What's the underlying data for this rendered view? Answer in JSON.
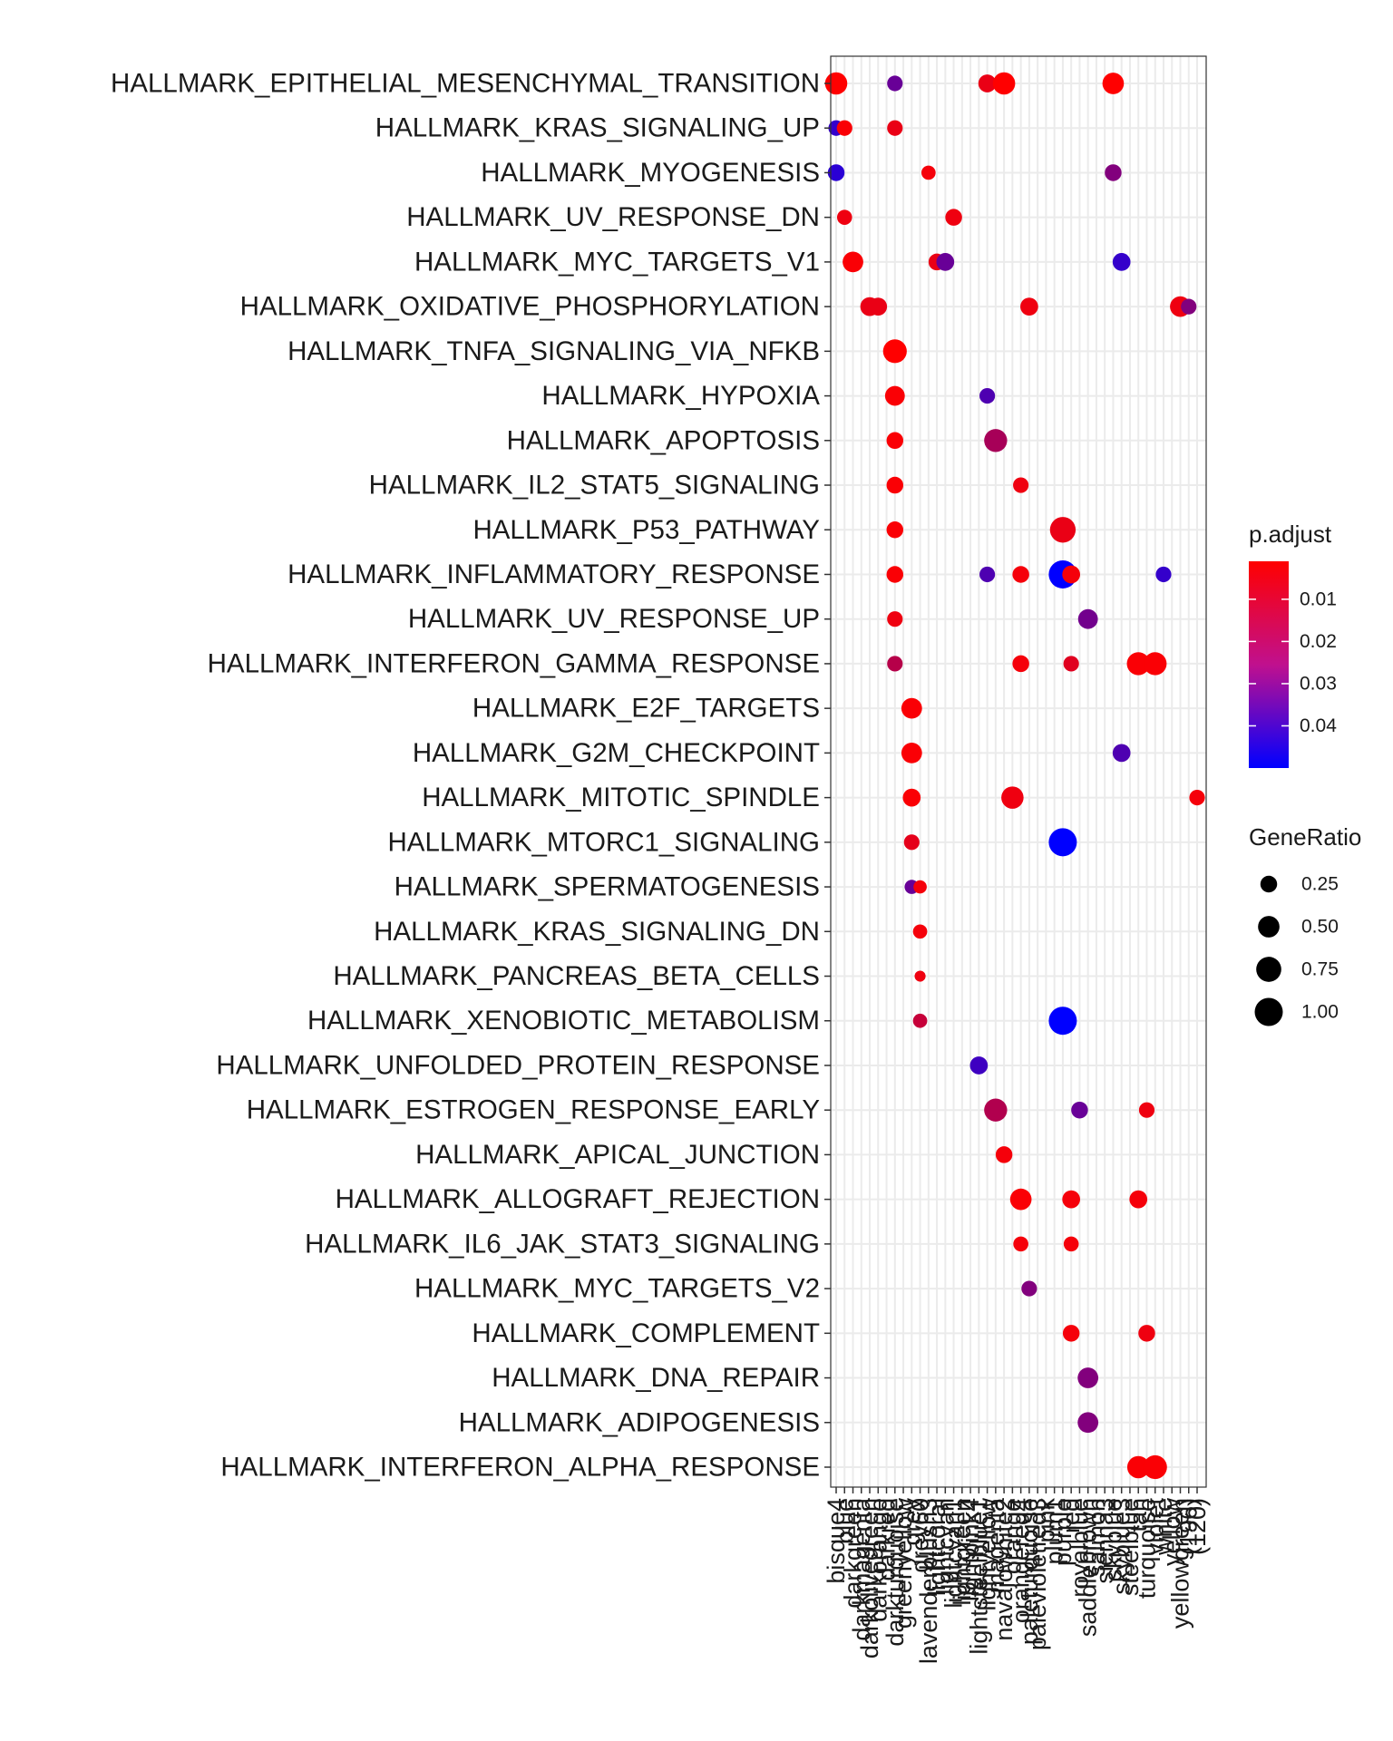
{
  "chart_data": {
    "type": "scatter",
    "title": "",
    "xlabel": "",
    "ylabel": "",
    "x_categories": [
      "bisque4",
      "blue",
      "darkgreen",
      "darkmagenta",
      "darkolivegreen",
      "darkorange",
      "darkred",
      "darkturquoise",
      "greenyellow",
      "grey",
      "grey60",
      "lavenderblush3",
      "lightcoral",
      "lightcyan",
      "lightcyan1",
      "lightgreen",
      "lightpink4",
      "lightsteelblue1",
      "lightyellow",
      "magenta",
      "navajowhite2",
      "orange",
      "orangered4",
      "paleturquoise",
      "palevioletred3",
      "pink",
      "plum1",
      "purple",
      "red",
      "royalblue",
      "saddlebrown",
      "salmon",
      "sienna3",
      "skyblue",
      "skyblue3",
      "steelblue",
      "tan",
      "turquoise",
      "violet",
      "white",
      "yellow",
      "yellowgreen",
      "(196)",
      "(120)"
    ],
    "y_categories": [
      "HALLMARK_EPITHELIAL_MESENCHYMAL_TRANSITION",
      "HALLMARK_KRAS_SIGNALING_UP",
      "HALLMARK_MYOGENESIS",
      "HALLMARK_UV_RESPONSE_DN",
      "HALLMARK_MYC_TARGETS_V1",
      "HALLMARK_OXIDATIVE_PHOSPHORYLATION",
      "HALLMARK_TNFA_SIGNALING_VIA_NFKB",
      "HALLMARK_HYPOXIA",
      "HALLMARK_APOPTOSIS",
      "HALLMARK_IL2_STAT5_SIGNALING",
      "HALLMARK_P53_PATHWAY",
      "HALLMARK_INFLAMMATORY_RESPONSE",
      "HALLMARK_UV_RESPONSE_UP",
      "HALLMARK_INTERFERON_GAMMA_RESPONSE",
      "HALLMARK_E2F_TARGETS",
      "HALLMARK_G2M_CHECKPOINT",
      "HALLMARK_MITOTIC_SPINDLE",
      "HALLMARK_MTORC1_SIGNALING",
      "HALLMARK_SPERMATOGENESIS",
      "HALLMARK_KRAS_SIGNALING_DN",
      "HALLMARK_PANCREAS_BETA_CELLS",
      "HALLMARK_XENOBIOTIC_METABOLISM",
      "HALLMARK_UNFOLDED_PROTEIN_RESPONSE",
      "HALLMARK_ESTROGEN_RESPONSE_EARLY",
      "HALLMARK_APICAL_JUNCTION",
      "HALLMARK_ALLOGRAFT_REJECTION",
      "HALLMARK_IL6_JAK_STAT3_SIGNALING",
      "HALLMARK_MYC_TARGETS_V2",
      "HALLMARK_COMPLEMENT",
      "HALLMARK_DNA_REPAIR",
      "HALLMARK_ADIPOGENESIS",
      "HALLMARK_INTERFERON_ALPHA_RESPONSE"
    ],
    "points": [
      {
        "x": "bisque4",
        "y": "HALLMARK_EPITHELIAL_MESENCHYMAL_TRANSITION",
        "gene_ratio": 0.55,
        "p_adjust": 0.001
      },
      {
        "x": "darkturquoise",
        "y": "HALLMARK_EPITHELIAL_MESENCHYMAL_TRANSITION",
        "gene_ratio": 0.2,
        "p_adjust": 0.03
      },
      {
        "x": "lightyellow",
        "y": "HALLMARK_EPITHELIAL_MESENCHYMAL_TRANSITION",
        "gene_ratio": 0.3,
        "p_adjust": 0.005
      },
      {
        "x": "navajowhite2",
        "y": "HALLMARK_EPITHELIAL_MESENCHYMAL_TRANSITION",
        "gene_ratio": 0.55,
        "p_adjust": 0.001
      },
      {
        "x": "skyblue",
        "y": "HALLMARK_EPITHELIAL_MESENCHYMAL_TRANSITION",
        "gene_ratio": 0.5,
        "p_adjust": 0.001
      },
      {
        "x": "bisque4",
        "y": "HALLMARK_KRAS_SIGNALING_UP",
        "gene_ratio": 0.2,
        "p_adjust": 0.04
      },
      {
        "x": "blue",
        "y": "HALLMARK_KRAS_SIGNALING_UP",
        "gene_ratio": 0.2,
        "p_adjust": 0.002
      },
      {
        "x": "darkturquoise",
        "y": "HALLMARK_KRAS_SIGNALING_UP",
        "gene_ratio": 0.2,
        "p_adjust": 0.005
      },
      {
        "x": "bisque4",
        "y": "HALLMARK_MYOGENESIS",
        "gene_ratio": 0.25,
        "p_adjust": 0.042
      },
      {
        "x": "lavenderblush3",
        "y": "HALLMARK_MYOGENESIS",
        "gene_ratio": 0.15,
        "p_adjust": 0.003
      },
      {
        "x": "skyblue",
        "y": "HALLMARK_MYOGENESIS",
        "gene_ratio": 0.25,
        "p_adjust": 0.025
      },
      {
        "x": "blue",
        "y": "HALLMARK_UV_RESPONSE_DN",
        "gene_ratio": 0.18,
        "p_adjust": 0.004
      },
      {
        "x": "lightcyan1",
        "y": "HALLMARK_UV_RESPONSE_DN",
        "gene_ratio": 0.25,
        "p_adjust": 0.004
      },
      {
        "x": "darkgreen",
        "y": "HALLMARK_MYC_TARGETS_V1",
        "gene_ratio": 0.45,
        "p_adjust": 0.002
      },
      {
        "x": "lightcoral",
        "y": "HALLMARK_MYC_TARGETS_V1",
        "gene_ratio": 0.25,
        "p_adjust": 0.005
      },
      {
        "x": "lightcyan",
        "y": "HALLMARK_MYC_TARGETS_V1",
        "gene_ratio": 0.3,
        "p_adjust": 0.03
      },
      {
        "x": "skyblue3",
        "y": "HALLMARK_MYC_TARGETS_V1",
        "gene_ratio": 0.3,
        "p_adjust": 0.04
      },
      {
        "x": "darkolivegreen",
        "y": "HALLMARK_OXIDATIVE_PHOSPHORYLATION",
        "gene_ratio": 0.35,
        "p_adjust": 0.005
      },
      {
        "x": "darkorange",
        "y": "HALLMARK_OXIDATIVE_PHOSPHORYLATION",
        "gene_ratio": 0.3,
        "p_adjust": 0.005
      },
      {
        "x": "paleturquoise",
        "y": "HALLMARK_OXIDATIVE_PHOSPHORYLATION",
        "gene_ratio": 0.3,
        "p_adjust": 0.004
      },
      {
        "x": "yellowgreen",
        "y": "HALLMARK_OXIDATIVE_PHOSPHORYLATION",
        "gene_ratio": 0.45,
        "p_adjust": 0.004
      },
      {
        "x": "(196)",
        "y": "HALLMARK_OXIDATIVE_PHOSPHORYLATION",
        "gene_ratio": 0.2,
        "p_adjust": 0.025
      },
      {
        "x": "darkturquoise",
        "y": "HALLMARK_TNFA_SIGNALING_VIA_NFKB",
        "gene_ratio": 0.65,
        "p_adjust": 0.001
      },
      {
        "x": "darkturquoise",
        "y": "HALLMARK_HYPOXIA",
        "gene_ratio": 0.4,
        "p_adjust": 0.002
      },
      {
        "x": "lightyellow",
        "y": "HALLMARK_HYPOXIA",
        "gene_ratio": 0.2,
        "p_adjust": 0.035
      },
      {
        "x": "darkturquoise",
        "y": "HALLMARK_APOPTOSIS",
        "gene_ratio": 0.25,
        "p_adjust": 0.002
      },
      {
        "x": "magenta",
        "y": "HALLMARK_APOPTOSIS",
        "gene_ratio": 0.6,
        "p_adjust": 0.018
      },
      {
        "x": "darkturquoise",
        "y": "HALLMARK_IL2_STAT5_SIGNALING",
        "gene_ratio": 0.25,
        "p_adjust": 0.002
      },
      {
        "x": "orangered4",
        "y": "HALLMARK_IL2_STAT5_SIGNALING",
        "gene_ratio": 0.2,
        "p_adjust": 0.004
      },
      {
        "x": "darkturquoise",
        "y": "HALLMARK_P53_PATHWAY",
        "gene_ratio": 0.25,
        "p_adjust": 0.002
      },
      {
        "x": "purple",
        "y": "HALLMARK_P53_PATHWAY",
        "gene_ratio": 0.8,
        "p_adjust": 0.005
      },
      {
        "x": "darkturquoise",
        "y": "HALLMARK_INFLAMMATORY_RESPONSE",
        "gene_ratio": 0.25,
        "p_adjust": 0.002
      },
      {
        "x": "lightyellow",
        "y": "HALLMARK_INFLAMMATORY_RESPONSE",
        "gene_ratio": 0.2,
        "p_adjust": 0.035
      },
      {
        "x": "orangered4",
        "y": "HALLMARK_INFLAMMATORY_RESPONSE",
        "gene_ratio": 0.25,
        "p_adjust": 0.003
      },
      {
        "x": "purple",
        "y": "HALLMARK_INFLAMMATORY_RESPONSE",
        "gene_ratio": 1.0,
        "p_adjust": 0.05
      },
      {
        "x": "red",
        "y": "HALLMARK_INFLAMMATORY_RESPONSE",
        "gene_ratio": 0.3,
        "p_adjust": 0.003
      },
      {
        "x": "white",
        "y": "HALLMARK_INFLAMMATORY_RESPONSE",
        "gene_ratio": 0.2,
        "p_adjust": 0.04
      },
      {
        "x": "darkturquoise",
        "y": "HALLMARK_UV_RESPONSE_UP",
        "gene_ratio": 0.2,
        "p_adjust": 0.004
      },
      {
        "x": "saddlebrown",
        "y": "HALLMARK_UV_RESPONSE_UP",
        "gene_ratio": 0.4,
        "p_adjust": 0.028
      },
      {
        "x": "darkturquoise",
        "y": "HALLMARK_INTERFERON_GAMMA_RESPONSE",
        "gene_ratio": 0.2,
        "p_adjust": 0.015
      },
      {
        "x": "orangered4",
        "y": "HALLMARK_INTERFERON_GAMMA_RESPONSE",
        "gene_ratio": 0.25,
        "p_adjust": 0.003
      },
      {
        "x": "red",
        "y": "HALLMARK_INTERFERON_GAMMA_RESPONSE",
        "gene_ratio": 0.2,
        "p_adjust": 0.007
      },
      {
        "x": "tan",
        "y": "HALLMARK_INTERFERON_GAMMA_RESPONSE",
        "gene_ratio": 0.6,
        "p_adjust": 0.002
      },
      {
        "x": "violet",
        "y": "HALLMARK_INTERFERON_GAMMA_RESPONSE",
        "gene_ratio": 0.6,
        "p_adjust": 0.002
      },
      {
        "x": "grey",
        "y": "HALLMARK_E2F_TARGETS",
        "gene_ratio": 0.45,
        "p_adjust": 0.002
      },
      {
        "x": "grey",
        "y": "HALLMARK_G2M_CHECKPOINT",
        "gene_ratio": 0.45,
        "p_adjust": 0.002
      },
      {
        "x": "skyblue3",
        "y": "HALLMARK_G2M_CHECKPOINT",
        "gene_ratio": 0.3,
        "p_adjust": 0.035
      },
      {
        "x": "grey",
        "y": "HALLMARK_MITOTIC_SPINDLE",
        "gene_ratio": 0.3,
        "p_adjust": 0.002
      },
      {
        "x": "orange",
        "y": "HALLMARK_MITOTIC_SPINDLE",
        "gene_ratio": 0.55,
        "p_adjust": 0.004
      },
      {
        "x": "(120)",
        "y": "HALLMARK_MITOTIC_SPINDLE",
        "gene_ratio": 0.2,
        "p_adjust": 0.003
      },
      {
        "x": "grey",
        "y": "HALLMARK_MTORC1_SIGNALING",
        "gene_ratio": 0.2,
        "p_adjust": 0.006
      },
      {
        "x": "purple",
        "y": "HALLMARK_MTORC1_SIGNALING",
        "gene_ratio": 1.0,
        "p_adjust": 0.05
      },
      {
        "x": "grey",
        "y": "HALLMARK_SPERMATOGENESIS",
        "gene_ratio": 0.15,
        "p_adjust": 0.03
      },
      {
        "x": "grey60",
        "y": "HALLMARK_SPERMATOGENESIS",
        "gene_ratio": 0.12,
        "p_adjust": 0.003
      },
      {
        "x": "grey60",
        "y": "HALLMARK_KRAS_SIGNALING_DN",
        "gene_ratio": 0.15,
        "p_adjust": 0.003
      },
      {
        "x": "grey60",
        "y": "HALLMARK_PANCREAS_BETA_CELLS",
        "gene_ratio": 0.06,
        "p_adjust": 0.004
      },
      {
        "x": "grey60",
        "y": "HALLMARK_XENOBIOTIC_METABOLISM",
        "gene_ratio": 0.15,
        "p_adjust": 0.012
      },
      {
        "x": "purple",
        "y": "HALLMARK_XENOBIOTIC_METABOLISM",
        "gene_ratio": 1.0,
        "p_adjust": 0.05
      },
      {
        "x": "lightsteelblue1",
        "y": "HALLMARK_UNFOLDED_PROTEIN_RESPONSE",
        "gene_ratio": 0.3,
        "p_adjust": 0.038
      },
      {
        "x": "magenta",
        "y": "HALLMARK_ESTROGEN_RESPONSE_EARLY",
        "gene_ratio": 0.6,
        "p_adjust": 0.016
      },
      {
        "x": "royalblue",
        "y": "HALLMARK_ESTROGEN_RESPONSE_EARLY",
        "gene_ratio": 0.25,
        "p_adjust": 0.03
      },
      {
        "x": "turquoise",
        "y": "HALLMARK_ESTROGEN_RESPONSE_EARLY",
        "gene_ratio": 0.2,
        "p_adjust": 0.004
      },
      {
        "x": "navajowhite2",
        "y": "HALLMARK_APICAL_JUNCTION",
        "gene_ratio": 0.25,
        "p_adjust": 0.003
      },
      {
        "x": "orangered4",
        "y": "HALLMARK_ALLOGRAFT_REJECTION",
        "gene_ratio": 0.5,
        "p_adjust": 0.002
      },
      {
        "x": "red",
        "y": "HALLMARK_ALLOGRAFT_REJECTION",
        "gene_ratio": 0.3,
        "p_adjust": 0.003
      },
      {
        "x": "tan",
        "y": "HALLMARK_ALLOGRAFT_REJECTION",
        "gene_ratio": 0.3,
        "p_adjust": 0.003
      },
      {
        "x": "orangered4",
        "y": "HALLMARK_IL6_JAK_STAT3_SIGNALING",
        "gene_ratio": 0.18,
        "p_adjust": 0.003
      },
      {
        "x": "red",
        "y": "HALLMARK_IL6_JAK_STAT3_SIGNALING",
        "gene_ratio": 0.18,
        "p_adjust": 0.003
      },
      {
        "x": "paleturquoise",
        "y": "HALLMARK_MYC_TARGETS_V2",
        "gene_ratio": 0.2,
        "p_adjust": 0.025
      },
      {
        "x": "red",
        "y": "HALLMARK_COMPLEMENT",
        "gene_ratio": 0.25,
        "p_adjust": 0.003
      },
      {
        "x": "turquoise",
        "y": "HALLMARK_COMPLEMENT",
        "gene_ratio": 0.25,
        "p_adjust": 0.004
      },
      {
        "x": "saddlebrown",
        "y": "HALLMARK_DNA_REPAIR",
        "gene_ratio": 0.45,
        "p_adjust": 0.025
      },
      {
        "x": "saddlebrown",
        "y": "HALLMARK_ADIPOGENESIS",
        "gene_ratio": 0.45,
        "p_adjust": 0.025
      },
      {
        "x": "tan",
        "y": "HALLMARK_INTERFERON_ALPHA_RESPONSE",
        "gene_ratio": 0.55,
        "p_adjust": 0.002
      },
      {
        "x": "violet",
        "y": "HALLMARK_INTERFERON_ALPHA_RESPONSE",
        "gene_ratio": 0.65,
        "p_adjust": 0.002
      }
    ],
    "legend": {
      "placement": "right",
      "color": {
        "title": "p.adjust",
        "ticks": [
          "0.01",
          "0.02",
          "0.03",
          "0.04"
        ],
        "tick_values": [
          0.01,
          0.02,
          0.03,
          0.04
        ],
        "range": [
          0.001,
          0.05
        ],
        "low_color": "#ff0000",
        "high_color": "#0000ff"
      },
      "size": {
        "title": "GeneRatio",
        "ticks": [
          "0.25",
          "0.50",
          "0.75",
          "1.00"
        ],
        "tick_values": [
          0.25,
          0.5,
          0.75,
          1.0
        ]
      }
    },
    "grid": true
  }
}
